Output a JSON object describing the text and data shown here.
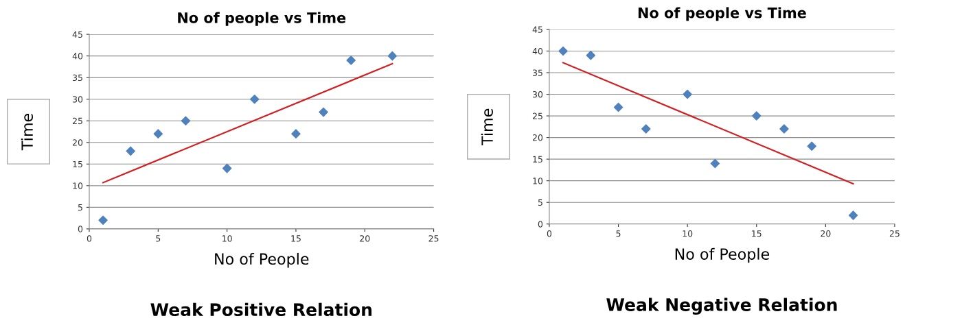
{
  "chart_data": [
    {
      "type": "scatter",
      "title": "No of people vs Time",
      "xlabel": "No of People",
      "ylabel": "Time",
      "annotations": [
        "Weak Positive Relation"
      ],
      "xlim": [
        0,
        25
      ],
      "xticks": [
        0,
        5,
        10,
        15,
        20,
        25
      ],
      "ylim": [
        0,
        45
      ],
      "yticks": [
        0,
        5,
        10,
        15,
        20,
        25,
        30,
        35,
        40,
        45
      ],
      "grid": "y",
      "legend": false,
      "marker": "diamond",
      "series": [
        {
          "color": "#4f81bd",
          "x": [
            1,
            3,
            5,
            7,
            10,
            12,
            15,
            17,
            19,
            22
          ],
          "values": [
            2,
            18,
            22,
            25,
            14,
            30,
            22,
            27,
            39,
            40
          ]
        },
        {
          "type": "line",
          "color": "#d42020",
          "marker": "none",
          "line_style": "solid",
          "x": [
            1,
            22
          ],
          "values": [
            10.7,
            38.2
          ]
        }
      ]
    },
    {
      "type": "scatter",
      "title": "No of people vs Time",
      "xlabel": "No of People",
      "ylabel": "Time",
      "annotations": [
        "Weak Negative Relation"
      ],
      "xlim": [
        0,
        25
      ],
      "xticks": [
        0,
        5,
        10,
        15,
        20,
        25
      ],
      "ylim": [
        0,
        45
      ],
      "yticks": [
        0,
        5,
        10,
        15,
        20,
        25,
        30,
        35,
        40,
        45
      ],
      "grid": "y",
      "legend": false,
      "marker": "diamond",
      "series": [
        {
          "color": "#4f81bd",
          "x": [
            1,
            3,
            5,
            7,
            10,
            12,
            15,
            17,
            19,
            22
          ],
          "values": [
            40,
            39,
            27,
            22,
            30,
            14,
            25,
            22,
            18,
            2
          ]
        },
        {
          "type": "line",
          "color": "#d42020",
          "marker": "none",
          "line_style": "solid",
          "x": [
            1,
            22
          ],
          "values": [
            37.3,
            9.3
          ]
        }
      ]
    }
  ]
}
